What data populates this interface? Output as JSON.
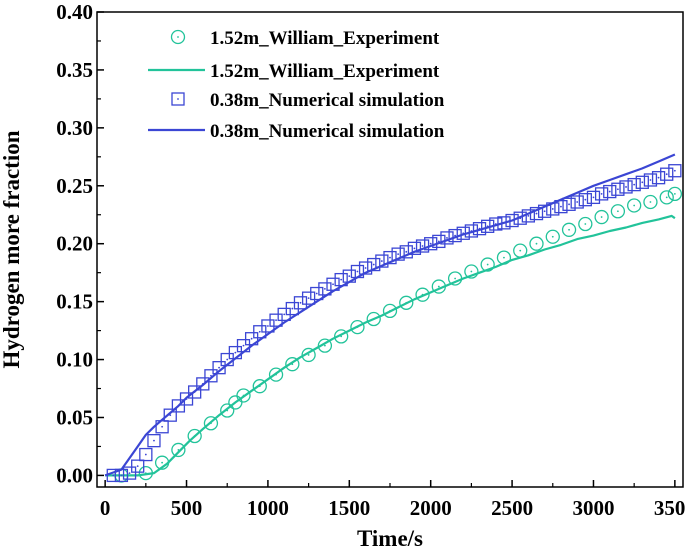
{
  "chart_data": {
    "type": "line",
    "title": "",
    "xlabel": "Time/s",
    "ylabel": "Hydrogen more fraction",
    "xlim": [
      -50,
      3550
    ],
    "ylim": [
      -0.01,
      0.4
    ],
    "xticks": [
      0,
      500,
      1000,
      1500,
      2000,
      2500,
      3000,
      3500
    ],
    "xtick_labels": [
      "0",
      "500",
      "1000",
      "1500",
      "2000",
      "2500",
      "3000",
      "3500"
    ],
    "yticks": [
      0.0,
      0.05,
      0.1,
      0.15,
      0.2,
      0.25,
      0.3,
      0.35,
      0.4
    ],
    "ytick_labels": [
      "0.00",
      "0.05",
      "0.10",
      "0.15",
      "0.20",
      "0.25",
      "0.30",
      "0.35",
      "0.40"
    ],
    "legend_position": "top-center",
    "series": [
      {
        "name": "1.52m_William_Experiment",
        "style": "circle-markers",
        "color": "#22c39a",
        "x": [
          100,
          250,
          350,
          450,
          550,
          650,
          750,
          800,
          850,
          950,
          1050,
          1150,
          1250,
          1350,
          1450,
          1550,
          1650,
          1750,
          1850,
          1950,
          2050,
          2150,
          2250,
          2350,
          2450,
          2550,
          2650,
          2750,
          2850,
          2950,
          3050,
          3150,
          3250,
          3350,
          3450,
          3500
        ],
        "y": [
          0.0,
          0.002,
          0.011,
          0.022,
          0.034,
          0.045,
          0.056,
          0.063,
          0.069,
          0.077,
          0.087,
          0.096,
          0.104,
          0.112,
          0.12,
          0.128,
          0.135,
          0.142,
          0.149,
          0.156,
          0.163,
          0.17,
          0.176,
          0.182,
          0.188,
          0.194,
          0.2,
          0.206,
          0.212,
          0.217,
          0.223,
          0.228,
          0.233,
          0.236,
          0.24,
          0.243
        ]
      },
      {
        "name": "1.52m_William_Experiment",
        "style": "line",
        "color": "#22c39a",
        "x": [
          0,
          200,
          300,
          380,
          450,
          520,
          600,
          700,
          800,
          900,
          1000,
          1100,
          1200,
          1300,
          1400,
          1500,
          1600,
          1700,
          1800,
          1900,
          2000,
          2100,
          2200,
          2300,
          2400,
          2500,
          2600,
          2700,
          2800,
          2900,
          3000,
          3100,
          3200,
          3300,
          3400,
          3480,
          3500
        ],
        "y": [
          0.0,
          0.0,
          0.002,
          0.01,
          0.02,
          0.03,
          0.04,
          0.052,
          0.063,
          0.073,
          0.083,
          0.093,
          0.102,
          0.11,
          0.118,
          0.125,
          0.132,
          0.138,
          0.145,
          0.152,
          0.158,
          0.164,
          0.17,
          0.175,
          0.18,
          0.186,
          0.19,
          0.195,
          0.199,
          0.204,
          0.207,
          0.211,
          0.214,
          0.218,
          0.221,
          0.224,
          0.222
        ]
      },
      {
        "name": "0.38m_Numerical simulation",
        "style": "square-markers",
        "color": "#3b46d4",
        "x": [
          50,
          100,
          150,
          200,
          250,
          300,
          350,
          400,
          450,
          500,
          550,
          600,
          650,
          700,
          750,
          800,
          850,
          900,
          950,
          1000,
          1050,
          1100,
          1150,
          1200,
          1250,
          1300,
          1350,
          1400,
          1450,
          1500,
          1550,
          1600,
          1650,
          1700,
          1750,
          1800,
          1850,
          1900,
          1950,
          2000,
          2050,
          2100,
          2150,
          2200,
          2250,
          2300,
          2350,
          2400,
          2450,
          2500,
          2550,
          2600,
          2650,
          2700,
          2750,
          2800,
          2850,
          2900,
          2950,
          3000,
          3050,
          3100,
          3150,
          3200,
          3250,
          3300,
          3350,
          3400,
          3450,
          3500
        ],
        "y": [
          0.0,
          0.0,
          0.002,
          0.008,
          0.018,
          0.03,
          0.042,
          0.052,
          0.06,
          0.066,
          0.072,
          0.079,
          0.086,
          0.093,
          0.1,
          0.106,
          0.112,
          0.118,
          0.124,
          0.129,
          0.134,
          0.139,
          0.144,
          0.149,
          0.153,
          0.157,
          0.161,
          0.165,
          0.169,
          0.172,
          0.176,
          0.179,
          0.182,
          0.185,
          0.188,
          0.191,
          0.193,
          0.196,
          0.198,
          0.2,
          0.202,
          0.205,
          0.207,
          0.209,
          0.211,
          0.213,
          0.215,
          0.217,
          0.218,
          0.22,
          0.222,
          0.224,
          0.226,
          0.228,
          0.23,
          0.232,
          0.234,
          0.236,
          0.238,
          0.24,
          0.243,
          0.245,
          0.247,
          0.249,
          0.251,
          0.253,
          0.255,
          0.257,
          0.26,
          0.263
        ]
      },
      {
        "name": "0.38m_Numerical simulation",
        "style": "line",
        "color": "#3b46d4",
        "x": [
          0,
          100,
          150,
          200,
          250,
          300,
          350,
          400,
          450,
          500,
          600,
          700,
          800,
          900,
          1000,
          1100,
          1200,
          1300,
          1400,
          1500,
          1600,
          1700,
          1800,
          1900,
          2000,
          2100,
          2200,
          2300,
          2400,
          2500,
          2600,
          2700,
          2800,
          2900,
          3000,
          3100,
          3200,
          3300,
          3400,
          3500
        ],
        "y": [
          0.0,
          0.005,
          0.015,
          0.025,
          0.035,
          0.042,
          0.048,
          0.054,
          0.06,
          0.067,
          0.078,
          0.09,
          0.101,
          0.112,
          0.122,
          0.132,
          0.141,
          0.15,
          0.159,
          0.167,
          0.175,
          0.181,
          0.187,
          0.193,
          0.198,
          0.203,
          0.208,
          0.212,
          0.216,
          0.22,
          0.226,
          0.232,
          0.238,
          0.244,
          0.25,
          0.255,
          0.26,
          0.265,
          0.271,
          0.277
        ]
      }
    ],
    "legend": [
      {
        "label": "1.52m_William_Experiment",
        "marker": "circle",
        "color": "#22c39a"
      },
      {
        "label": "1.52m_William_Experiment",
        "marker": "line",
        "color": "#22c39a"
      },
      {
        "label": "0.38m_Numerical simulation",
        "marker": "square",
        "color": "#3b46d4"
      },
      {
        "label": "0.38m_Numerical simulation",
        "marker": "line",
        "color": "#3b46d4"
      }
    ]
  }
}
